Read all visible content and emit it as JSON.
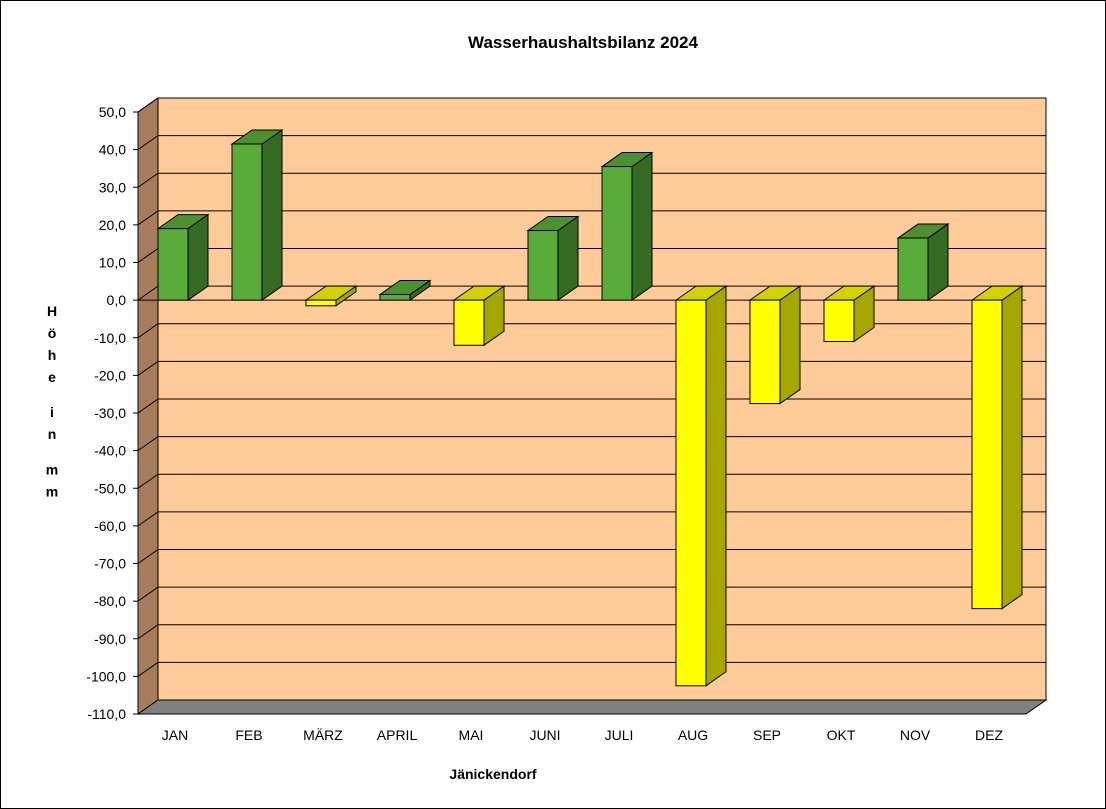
{
  "chart_data": {
    "type": "bar",
    "title": "Wasserhaushaltsbilanz 2024",
    "xlabel": "Jänickendorf",
    "ylabel": "Höhe in mm",
    "ylim": [
      -110,
      50
    ],
    "ytick_step": 10,
    "yticks": [
      "50,0",
      "40,0",
      "30,0",
      "20,0",
      "10,0",
      "0,0",
      "-10,0",
      "-20,0",
      "-30,0",
      "-40,0",
      "-50,0",
      "-60,0",
      "-70,0",
      "-80,0",
      "-90,0",
      "-100,0",
      "-110,0"
    ],
    "categories": [
      "JAN",
      "FEB",
      "MÄRZ",
      "APRIL",
      "MAI",
      "JUNI",
      "JULI",
      "AUG",
      "SEP",
      "OKT",
      "NOV",
      "DEZ"
    ],
    "values": [
      19,
      41.5,
      -1.5,
      1.5,
      -12,
      18.5,
      35.5,
      -102.5,
      -27.5,
      -11,
      16.5,
      -82
    ],
    "grid": true,
    "legend": "none",
    "three_d": true,
    "colors": {
      "positive_front": "#5aac3a",
      "positive_top": "#4c9030",
      "positive_side": "#356a22",
      "negative_front": "#ffff00",
      "negative_top": "#d2d200",
      "negative_side": "#a6a600",
      "plot_back": "#ffcc99",
      "plot_left_wall": "#a67c5c",
      "plot_floor": "#808080",
      "gridline": "#000000"
    }
  }
}
